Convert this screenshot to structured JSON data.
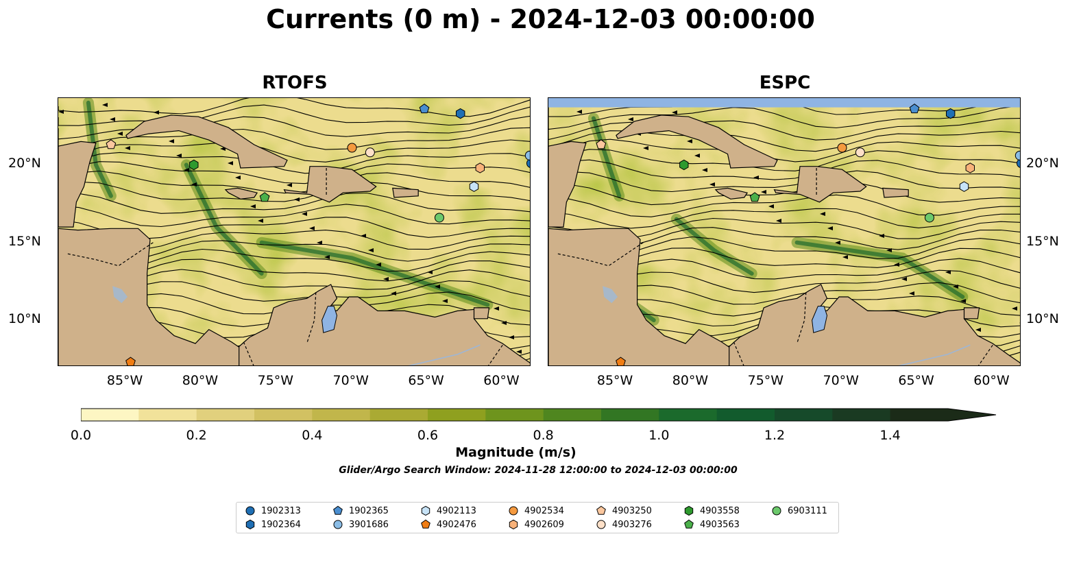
{
  "title": "Currents (0 m) - 2024-12-03 00:00:00",
  "panels": [
    {
      "name": "RTOFS",
      "has_top_mask": false
    },
    {
      "name": "ESPC",
      "has_top_mask": true
    }
  ],
  "axes": {
    "lon_ticks": [
      "85°W",
      "80°W",
      "75°W",
      "70°W",
      "65°W",
      "60°W"
    ],
    "lat_ticks": [
      "20°N",
      "15°N",
      "10°N"
    ],
    "lon_range": [
      -89.5,
      -58.1
    ],
    "lat_range": [
      7.0,
      24.3
    ]
  },
  "colorbar": {
    "label": "Magnitude (m/s)",
    "ticks": [
      "0.0",
      "0.2",
      "0.4",
      "0.6",
      "0.8",
      "1.0",
      "1.2",
      "1.4"
    ],
    "range": [
      0.0,
      1.5
    ],
    "extend": "max",
    "colors": [
      "#fdf6c3",
      "#f1e29a",
      "#e1d07d",
      "#d2c162",
      "#c1b64b",
      "#aaaa33",
      "#8fa01f",
      "#6e941d",
      "#4f861f",
      "#327623",
      "#1b6a2c",
      "#125b2d",
      "#164a2a",
      "#1a3a22",
      "#1b2b18"
    ]
  },
  "search_window": "Glider/Argo Search Window: 2024-11-28 12:00:00 to 2024-12-03 00:00:00",
  "legend": [
    {
      "id": "1902313",
      "marker": "circle",
      "color": "#1f6fb4"
    },
    {
      "id": "1902364",
      "marker": "hexagon",
      "color": "#1f6fb4"
    },
    {
      "id": "1902365",
      "marker": "pentagon",
      "color": "#4a8ed0"
    },
    {
      "id": "3901686",
      "marker": "circle",
      "color": "#8bbde6"
    },
    {
      "id": "4902113",
      "marker": "hexagon",
      "color": "#c7e3f7"
    },
    {
      "id": "4902476",
      "marker": "pentagon",
      "color": "#f07d14"
    },
    {
      "id": "4902534",
      "marker": "circle",
      "color": "#f59a3f"
    },
    {
      "id": "4902609",
      "marker": "hexagon",
      "color": "#f8b27a"
    },
    {
      "id": "4903250",
      "marker": "pentagon",
      "color": "#fbc79e"
    },
    {
      "id": "4903276",
      "marker": "circle",
      "color": "#fde0c8"
    },
    {
      "id": "4903558",
      "marker": "hexagon",
      "color": "#2e9a2e"
    },
    {
      "id": "4903563",
      "marker": "pentagon",
      "color": "#4bb04b"
    },
    {
      "id": "6903111",
      "marker": "circle",
      "color": "#6cc96c"
    }
  ],
  "floats": [
    {
      "id": "1902313",
      "lon": -58.1,
      "lat": 20.1
    },
    {
      "id": "1902364",
      "lon": -62.8,
      "lat": 23.3
    },
    {
      "id": "1902365",
      "lon": -65.2,
      "lat": 23.6
    },
    {
      "id": "3901686",
      "lon": -58.2,
      "lat": 20.6
    },
    {
      "id": "4902113",
      "lon": -61.9,
      "lat": 18.6
    },
    {
      "id": "4902476",
      "lon": -84.7,
      "lat": 7.3
    },
    {
      "id": "4902534",
      "lon": -70.0,
      "lat": 21.1
    },
    {
      "id": "4902609",
      "lon": -61.5,
      "lat": 19.8
    },
    {
      "id": "4903250",
      "lon": -86.0,
      "lat": 21.3
    },
    {
      "id": "4903276",
      "lon": -68.8,
      "lat": 20.8
    },
    {
      "id": "4903558",
      "lon": -80.5,
      "lat": 20.0
    },
    {
      "id": "4903563",
      "lon": -75.8,
      "lat": 17.9
    },
    {
      "id": "6903111",
      "lon": -64.2,
      "lat": 16.6
    }
  ]
}
